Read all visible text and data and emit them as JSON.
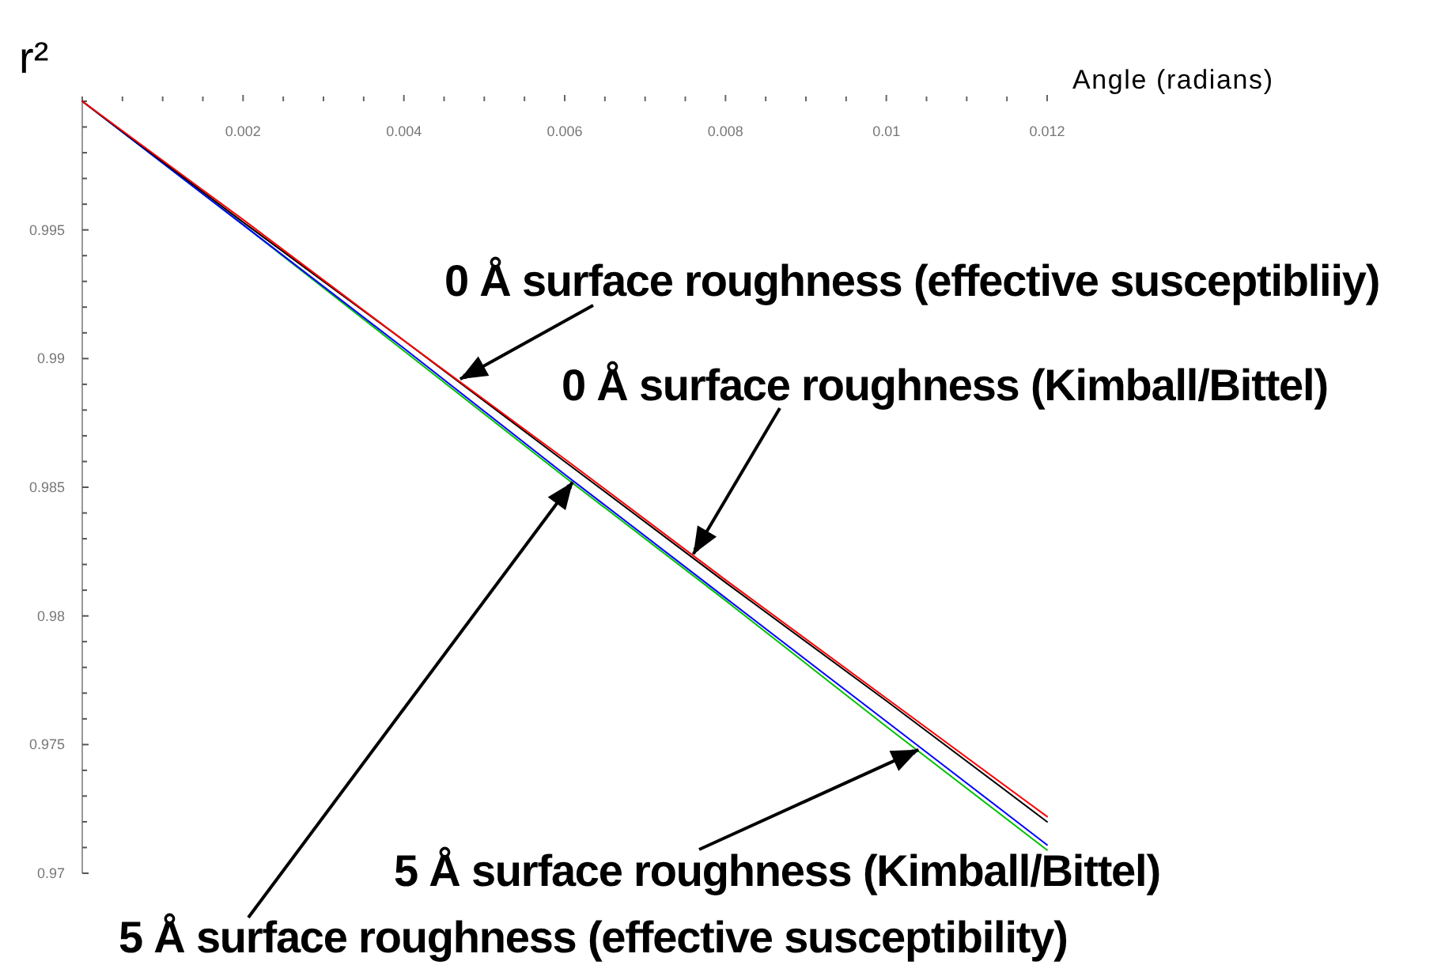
{
  "chart_data": {
    "type": "line",
    "xlabel": "Angle (radians)",
    "ylabel": "r²",
    "line_style": "solid",
    "x": [
      0,
      0.002,
      0.004,
      0.006,
      0.008,
      0.01,
      0.012
    ],
    "series": [
      {
        "color": "#00c000",
        "values": [
          1,
          0.9952,
          0.9903,
          0.9854,
          0.9806,
          0.9757,
          0.9709
        ]
      },
      {
        "color": "#0000ff",
        "values": [
          1,
          0.9952,
          0.9904,
          0.9855,
          0.9807,
          0.9759,
          0.9711
        ]
      },
      {
        "color": "#000000",
        "values": [
          1,
          0.9953,
          0.9907,
          0.986,
          0.9813,
          0.9767,
          0.972
        ]
      },
      {
        "color": "#ff0000",
        "values": [
          1,
          0.9954,
          0.9907,
          0.9861,
          0.9814,
          0.9768,
          0.9722
        ]
      }
    ],
    "xlim": [
      0,
      0.012
    ],
    "ylim": [
      0.97,
      1
    ],
    "xticks": [
      {
        "value": 0,
        "label": null
      },
      {
        "value": 0.0005,
        "label": null
      },
      {
        "value": 0.001,
        "label": null
      },
      {
        "value": 0.0015,
        "label": null
      },
      0.002,
      {
        "value": 0.0025,
        "label": null
      },
      {
        "value": 0.003,
        "label": null
      },
      {
        "value": 0.0035,
        "label": null
      },
      0.004,
      {
        "value": 0.0045,
        "label": null
      },
      {
        "value": 0.005,
        "label": null
      },
      {
        "value": 0.0055,
        "label": null
      },
      0.006,
      {
        "value": 0.0065,
        "label": null
      },
      {
        "value": 0.007,
        "label": null
      },
      {
        "value": 0.0075,
        "label": null
      },
      0.008,
      {
        "value": 0.0085,
        "label": null
      },
      {
        "value": 0.009,
        "label": null
      },
      {
        "value": 0.0095,
        "label": null
      },
      0.01,
      {
        "value": 0.0105,
        "label": null
      },
      {
        "value": 0.011,
        "label": null
      },
      {
        "value": 0.0115,
        "label": null
      },
      0.012
    ],
    "yticks": [
      0.97,
      {
        "value": 0.971,
        "label": null
      },
      {
        "value": 0.972,
        "label": null
      },
      {
        "value": 0.973,
        "label": null
      },
      {
        "value": 0.974,
        "label": null
      },
      0.975,
      {
        "value": 0.976,
        "label": null
      },
      {
        "value": 0.977,
        "label": null
      },
      {
        "value": 0.978,
        "label": null
      },
      {
        "value": 0.979,
        "label": null
      },
      0.98,
      {
        "value": 0.981,
        "label": null
      },
      {
        "value": 0.982,
        "label": null
      },
      {
        "value": 0.983,
        "label": null
      },
      {
        "value": 0.984,
        "label": null
      },
      0.985,
      {
        "value": 0.986,
        "label": null
      },
      {
        "value": 0.987,
        "label": null
      },
      {
        "value": 0.988,
        "label": null
      },
      {
        "value": 0.989,
        "label": null
      },
      0.99,
      {
        "value": 0.991,
        "label": null
      },
      {
        "value": 0.992,
        "label": null
      },
      {
        "value": 0.993,
        "label": null
      },
      {
        "value": 0.994,
        "label": null
      },
      0.995,
      {
        "value": 0.996,
        "label": null
      },
      {
        "value": 0.997,
        "label": null
      },
      {
        "value": 0.998,
        "label": null
      },
      {
        "value": 0.999,
        "label": null
      },
      {
        "value": 1,
        "label": null
      }
    ],
    "annotations": [
      {
        "text": "0 Å surface roughness (effective susceptibliiy)",
        "x": 0.0047,
        "y": 0.9892
      },
      {
        "text": "0 Å surface roughness (Kimball/Bittel)",
        "x": 0.0076,
        "y": 0.9824
      },
      {
        "text": "5 Å surface roughness (effective susceptibility)",
        "x": 0.0061,
        "y": 0.9852
      },
      {
        "text": "5 Å surface roughness (Kimball/Bittel)",
        "x": 0.0104,
        "y": 0.9748
      }
    ]
  }
}
